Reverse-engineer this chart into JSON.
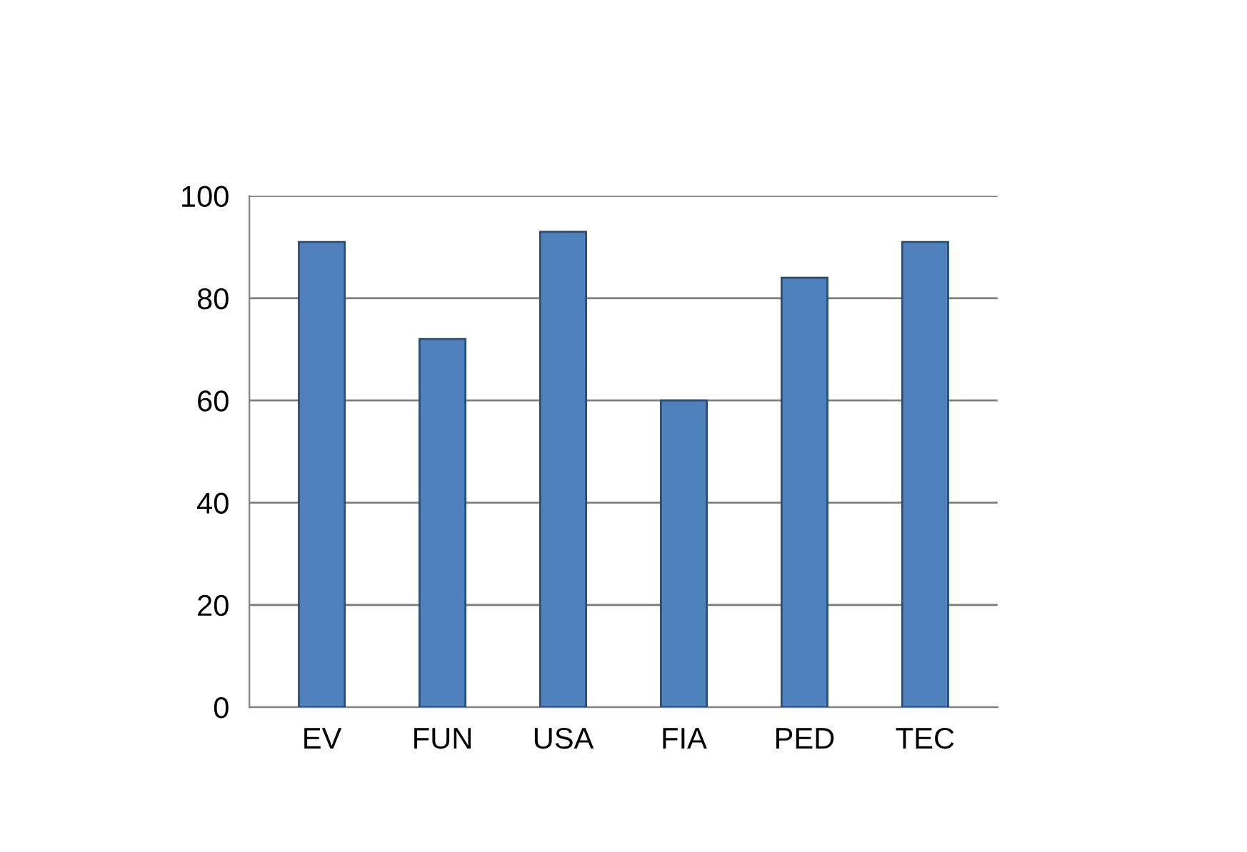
{
  "chart_data": {
    "type": "bar",
    "categories": [
      "EV",
      "FUN",
      "USA",
      "FIA",
      "PED",
      "TEC"
    ],
    "values": [
      91,
      72,
      93,
      60,
      84,
      91
    ],
    "color": "#4f81bd",
    "ylim": [
      0,
      100
    ],
    "yticks": [
      0,
      20,
      40,
      60,
      80,
      100
    ],
    "grid": "y"
  }
}
